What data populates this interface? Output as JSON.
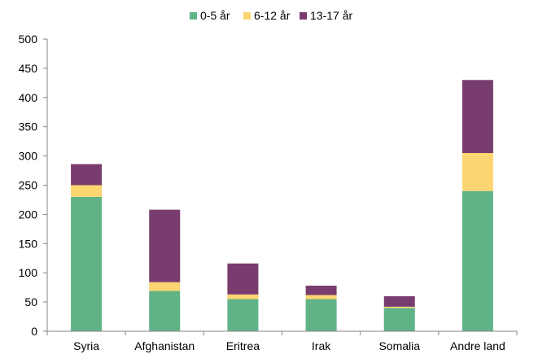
{
  "chart_data": {
    "type": "bar",
    "stacked": true,
    "title": "",
    "xlabel": "",
    "ylabel": "",
    "ylim": [
      0,
      500
    ],
    "yticks": [
      0,
      50,
      100,
      150,
      200,
      250,
      300,
      350,
      400,
      450,
      500
    ],
    "grid": false,
    "legend_position": "top",
    "categories": [
      "Syria",
      "Afghanistan",
      "Eritrea",
      "Irak",
      "Somalia",
      "Andre land"
    ],
    "series": [
      {
        "name": "0-5 år",
        "color": "#5fb387",
        "values": [
          230,
          69,
          55,
          55,
          40,
          240
        ]
      },
      {
        "name": "6-12 år",
        "color": "#fdd571",
        "values": [
          20,
          15,
          8,
          7,
          2,
          65
        ]
      },
      {
        "name": "13-17 år",
        "color": "#783d6e",
        "values": [
          36,
          124,
          53,
          16,
          18,
          125
        ]
      }
    ]
  }
}
